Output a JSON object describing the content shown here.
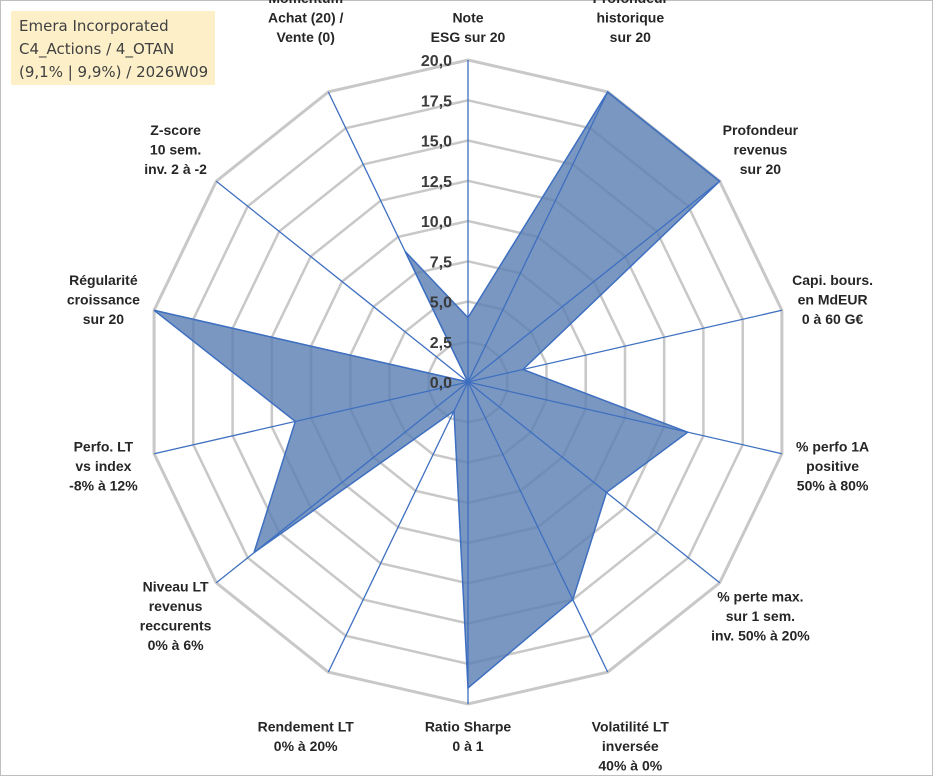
{
  "info_box": {
    "line1": "Emera Incorporated",
    "line2": "C4_Actions / 4_OTAN",
    "line3": "(9,1% | 9,9%) / 2026W09",
    "background": "#fdf0c9"
  },
  "chart_data": {
    "type": "radar",
    "colors": {
      "fill": "#5b80b3",
      "stroke": "#3e6fc0",
      "grid": "#c8c8c8",
      "spokes": "#3e6fc0"
    },
    "range": [
      0,
      20
    ],
    "grid_step": 2.5,
    "tick_labels": [
      "0,0",
      "2,5",
      "5,0",
      "7,5",
      "10,0",
      "12,5",
      "15,0",
      "17,5",
      "20,0"
    ],
    "axes": [
      {
        "label": [
          "Note",
          "ESG sur 20"
        ]
      },
      {
        "label": [
          "Profondeur",
          "historique",
          "sur 20"
        ]
      },
      {
        "label": [
          "Profondeur",
          "revenus",
          "sur 20"
        ]
      },
      {
        "label": [
          "Capi. bours.",
          "en MdEUR",
          "0 à 60 G€"
        ]
      },
      {
        "label": [
          "% perfo 1A",
          "positive",
          "50% à 80%"
        ]
      },
      {
        "label": [
          "% perte max.",
          "sur 1 sem.",
          "inv. 50% à 20%"
        ]
      },
      {
        "label": [
          "Volatilité LT",
          "inversée",
          "40% à 0%"
        ]
      },
      {
        "label": [
          "Ratio Sharpe",
          "0 à 1"
        ]
      },
      {
        "label": [
          "Rendement LT",
          "0% à 20%"
        ]
      },
      {
        "label": [
          "Niveau LT",
          "revenus",
          "reccurents",
          "0% à 6%"
        ]
      },
      {
        "label": [
          "Perfo. LT",
          "vs index",
          "-8% à 12%"
        ]
      },
      {
        "label": [
          "Régularité",
          "croissance",
          "sur 20"
        ]
      },
      {
        "label": [
          "Z-score",
          "10 sem.",
          "inv. 2 à -2"
        ]
      },
      {
        "label": [
          "Momentum",
          "Achat (20) /",
          "Vente (0)"
        ]
      }
    ],
    "values": [
      4.0,
      20.0,
      20.0,
      3.5,
      14.0,
      11.0,
      15.0,
      19.0,
      2.0,
      17.0,
      11.0,
      20.0,
      0.0,
      9.0
    ]
  }
}
